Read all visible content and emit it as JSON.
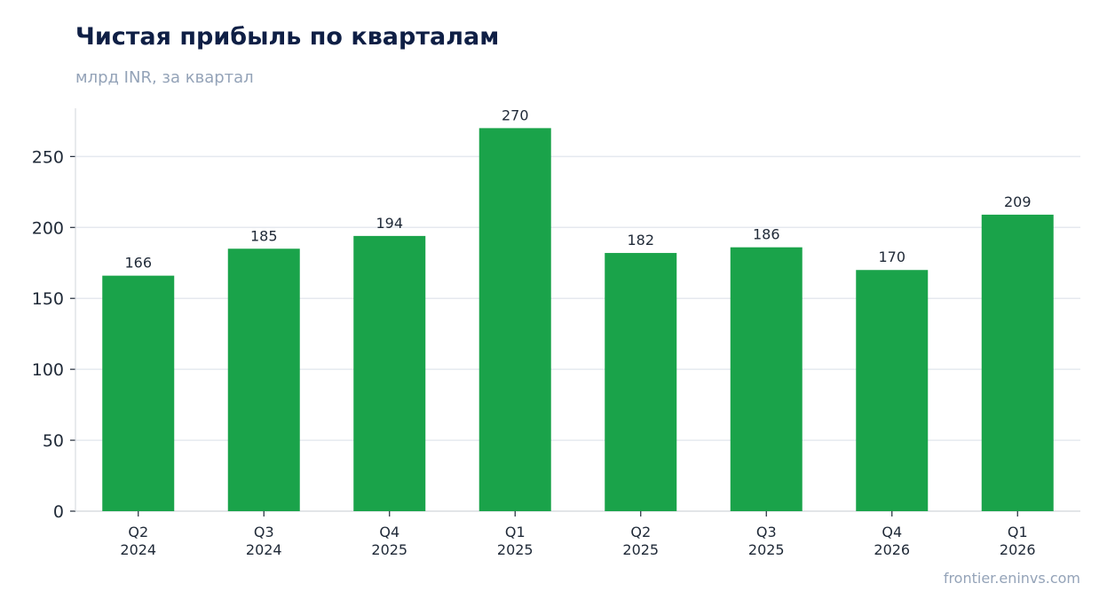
{
  "chart_data": {
    "type": "bar",
    "title": "Чистая прибыль по кварталам",
    "subtitle": "млрд INR, за квартал",
    "categories": [
      [
        "Q2",
        "2024"
      ],
      [
        "Q3",
        "2024"
      ],
      [
        "Q4",
        "2025"
      ],
      [
        "Q1",
        "2025"
      ],
      [
        "Q2",
        "2025"
      ],
      [
        "Q3",
        "2025"
      ],
      [
        "Q4",
        "2026"
      ],
      [
        "Q1",
        "2026"
      ]
    ],
    "values": [
      166,
      185,
      194,
      270,
      182,
      186,
      170,
      209
    ],
    "yticks": [
      0,
      50,
      100,
      150,
      200,
      250
    ],
    "ylim": [
      0,
      284
    ],
    "grid": true,
    "bar_color": "#1aa34a",
    "grid_color": "#e5e9ef",
    "axis_color": "#d1d5db"
  },
  "footer": {
    "source": "frontier.eninvs.com"
  }
}
